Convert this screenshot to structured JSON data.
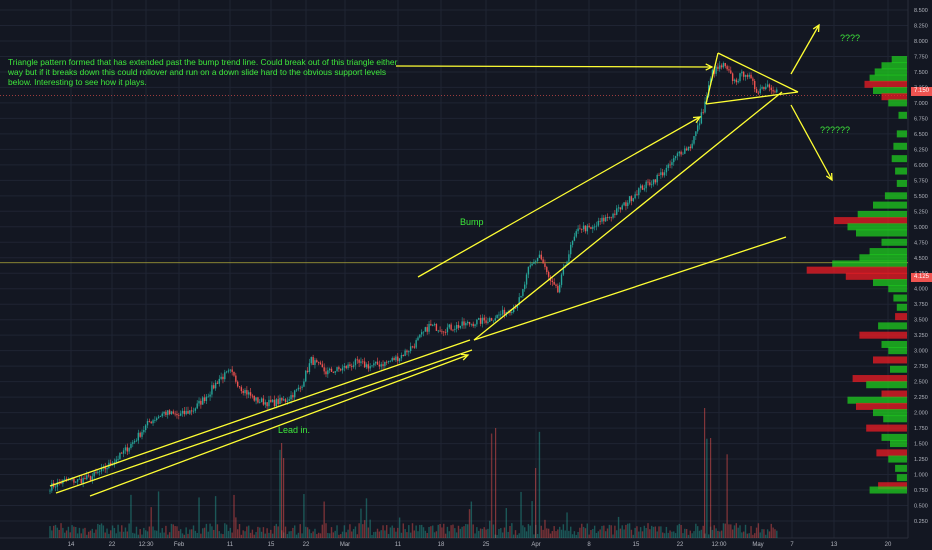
{
  "chart_data": {
    "type": "candlestick",
    "title": "",
    "xlabel": "",
    "ylabel": "",
    "ylim": [
      0.1,
      8.6
    ],
    "x_tick_labels": [
      "14",
      "22",
      "12:30",
      "Feb",
      "11",
      "15",
      "22",
      "Mar",
      "11",
      "18",
      "25",
      "Apr",
      "8",
      "15",
      "22",
      "12:00",
      "May",
      "7",
      "13",
      "20"
    ],
    "y_tick_labels": [
      "0.250",
      "0.500",
      "0.750",
      "1.000",
      "1.250",
      "1.500",
      "1.750",
      "2.000",
      "2.250",
      "2.500",
      "2.750",
      "3.000",
      "3.250",
      "3.500",
      "3.750",
      "4.000",
      "4.250",
      "4.500",
      "4.750",
      "5.000",
      "5.250",
      "5.500",
      "5.750",
      "6.000",
      "6.250",
      "6.500",
      "6.750",
      "7.000",
      "7.250",
      "7.500",
      "7.750",
      "8.000",
      "8.250",
      "8.500"
    ],
    "price_series": [
      [
        0,
        0.8
      ],
      [
        8,
        0.9
      ],
      [
        15,
        0.9
      ],
      [
        22,
        0.95
      ],
      [
        30,
        1.1
      ],
      [
        38,
        1.3
      ],
      [
        46,
        1.55
      ],
      [
        54,
        1.85
      ],
      [
        62,
        2.0
      ],
      [
        70,
        1.95
      ],
      [
        78,
        2.05
      ],
      [
        86,
        2.3
      ],
      [
        92,
        2.55
      ],
      [
        98,
        2.65
      ],
      [
        104,
        2.4
      ],
      [
        112,
        2.2
      ],
      [
        120,
        2.15
      ],
      [
        128,
        2.2
      ],
      [
        136,
        2.4
      ],
      [
        142,
        2.85
      ],
      [
        150,
        2.65
      ],
      [
        158,
        2.7
      ],
      [
        166,
        2.8
      ],
      [
        174,
        2.75
      ],
      [
        182,
        2.8
      ],
      [
        190,
        2.9
      ],
      [
        198,
        3.1
      ],
      [
        206,
        3.4
      ],
      [
        214,
        3.35
      ],
      [
        222,
        3.4
      ],
      [
        230,
        3.45
      ],
      [
        238,
        3.5
      ],
      [
        246,
        3.6
      ],
      [
        252,
        3.7
      ],
      [
        256,
        3.85
      ],
      [
        260,
        4.3
      ],
      [
        266,
        4.55
      ],
      [
        272,
        4.1
      ],
      [
        276,
        3.95
      ],
      [
        280,
        4.4
      ],
      [
        284,
        4.75
      ],
      [
        288,
        5.0
      ],
      [
        294,
        4.95
      ],
      [
        300,
        5.1
      ],
      [
        306,
        5.2
      ],
      [
        312,
        5.35
      ],
      [
        320,
        5.6
      ],
      [
        328,
        5.75
      ],
      [
        336,
        5.95
      ],
      [
        342,
        6.2
      ],
      [
        348,
        6.3
      ],
      [
        352,
        6.6
      ],
      [
        356,
        7.0
      ],
      [
        360,
        7.5
      ],
      [
        366,
        7.6
      ],
      [
        372,
        7.35
      ],
      [
        378,
        7.5
      ],
      [
        384,
        7.2
      ],
      [
        390,
        7.3
      ],
      [
        396,
        7.18
      ]
    ],
    "current_price": "7.150",
    "level_price": "4.125",
    "support_level": 4.42,
    "volume_profile_right": [
      [
        7.7,
        18,
        "g"
      ],
      [
        7.6,
        30,
        "g"
      ],
      [
        7.5,
        38,
        "g"
      ],
      [
        7.4,
        44,
        "g"
      ],
      [
        7.3,
        50,
        "r"
      ],
      [
        7.2,
        40,
        "g"
      ],
      [
        7.1,
        30,
        "r"
      ],
      [
        7.0,
        22,
        "g"
      ],
      [
        6.8,
        10,
        "g"
      ],
      [
        6.5,
        12,
        "g"
      ],
      [
        6.3,
        16,
        "g"
      ],
      [
        6.1,
        18,
        "g"
      ],
      [
        5.9,
        14,
        "g"
      ],
      [
        5.7,
        12,
        "g"
      ],
      [
        5.5,
        26,
        "g"
      ],
      [
        5.35,
        40,
        "g"
      ],
      [
        5.2,
        58,
        "g"
      ],
      [
        5.1,
        86,
        "r"
      ],
      [
        5.0,
        70,
        "g"
      ],
      [
        4.9,
        60,
        "g"
      ],
      [
        4.75,
        30,
        "g"
      ],
      [
        4.6,
        44,
        "g"
      ],
      [
        4.5,
        56,
        "g"
      ],
      [
        4.4,
        88,
        "g"
      ],
      [
        4.3,
        118,
        "r"
      ],
      [
        4.2,
        72,
        "r"
      ],
      [
        4.1,
        40,
        "g"
      ],
      [
        4.0,
        22,
        "g"
      ],
      [
        3.85,
        16,
        "g"
      ],
      [
        3.7,
        12,
        "g"
      ],
      [
        3.55,
        14,
        "r"
      ],
      [
        3.4,
        34,
        "g"
      ],
      [
        3.25,
        56,
        "r"
      ],
      [
        3.1,
        30,
        "g"
      ],
      [
        3.0,
        22,
        "g"
      ],
      [
        2.85,
        40,
        "r"
      ],
      [
        2.7,
        20,
        "g"
      ],
      [
        2.55,
        64,
        "r"
      ],
      [
        2.45,
        48,
        "g"
      ],
      [
        2.3,
        30,
        "r"
      ],
      [
        2.2,
        70,
        "g"
      ],
      [
        2.1,
        60,
        "r"
      ],
      [
        2.0,
        40,
        "g"
      ],
      [
        1.9,
        28,
        "g"
      ],
      [
        1.75,
        48,
        "r"
      ],
      [
        1.6,
        30,
        "g"
      ],
      [
        1.5,
        20,
        "g"
      ],
      [
        1.35,
        36,
        "r"
      ],
      [
        1.25,
        22,
        "g"
      ],
      [
        1.1,
        14,
        "g"
      ],
      [
        0.95,
        12,
        "g"
      ],
      [
        0.82,
        34,
        "r"
      ],
      [
        0.75,
        44,
        "g"
      ]
    ],
    "annotations": {
      "note": "Triangle pattern formed that has extended past the bump trend line. Could break out of this triangle either way but if it breaks down this could rollover and run on a down slide hard to the obvious support levels below. Interesting to see how it plays.",
      "bump": "Bump",
      "lead_in": "Lead in.",
      "up_question": "????",
      "down_question": "??????"
    },
    "colors": {
      "background": "#131722",
      "annotation": "#ffff33",
      "text_green": "#3ee83b",
      "up": "#26a69a",
      "down": "#ef5350",
      "profile_green": "#1fcc1f",
      "profile_red": "#ee1c24"
    }
  }
}
